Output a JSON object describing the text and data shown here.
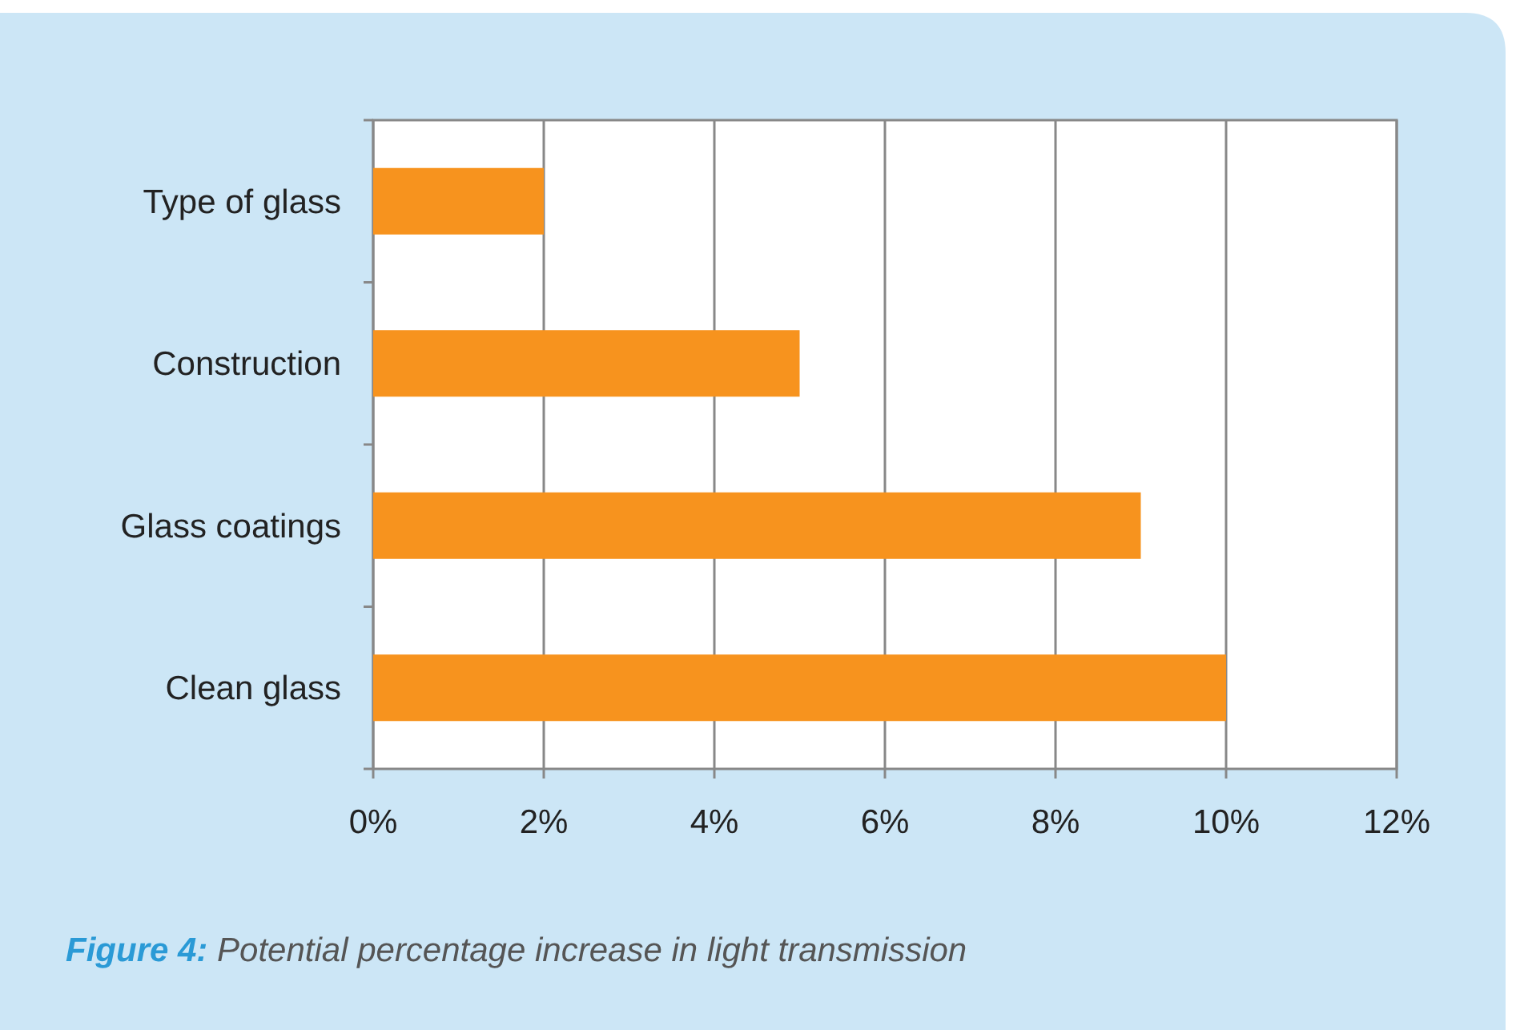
{
  "chart_data": {
    "type": "bar",
    "orientation": "horizontal",
    "categories": [
      "Type of glass",
      "Construction",
      "Glass coatings",
      "Clean glass"
    ],
    "values": [
      2,
      5,
      9,
      10
    ],
    "color": "#f7931e",
    "xlim": [
      0,
      12
    ],
    "xticks": [
      {
        "value": 0,
        "label": "0%"
      },
      {
        "value": 2,
        "label": "2%"
      },
      {
        "value": 4,
        "label": "4%"
      },
      {
        "value": 6,
        "label": "6%"
      },
      {
        "value": 8,
        "label": "8%"
      },
      {
        "value": 10,
        "label": "10%"
      },
      {
        "value": 12,
        "label": "12%"
      }
    ],
    "grid": "x",
    "annotations": [
      "Figure 4: Potential percentage increase in light transmission"
    ]
  }
}
